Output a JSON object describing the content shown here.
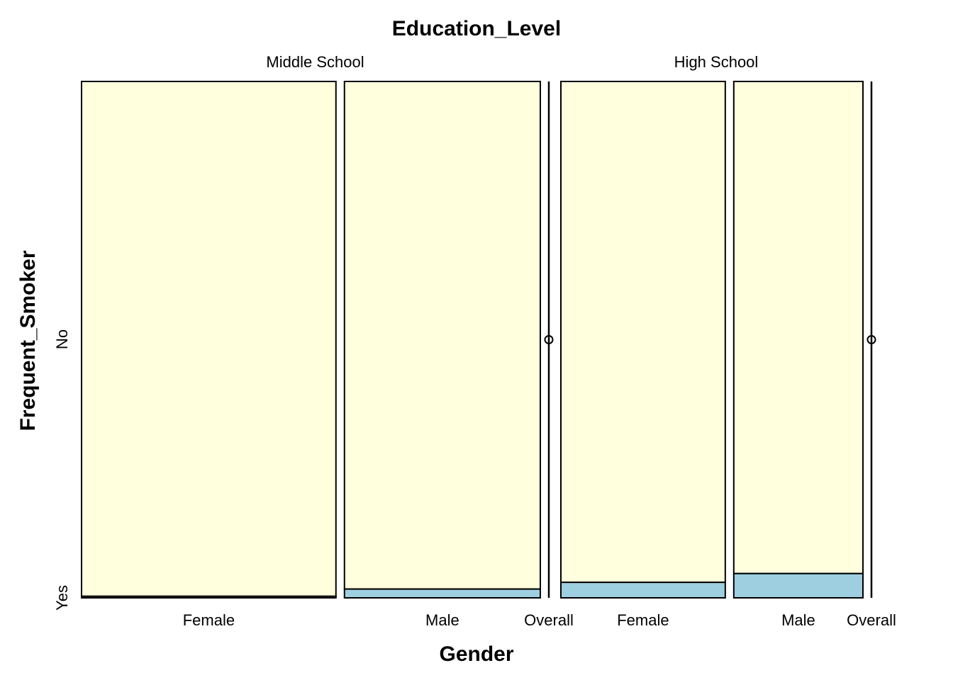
{
  "chart_data": {
    "type": "spineplot",
    "title": "Education_Level",
    "xlabel": "Gender",
    "ylabel": "Frequent_Smoker",
    "y_levels": [
      "No",
      "Yes"
    ],
    "y_ticks": [
      "Yes",
      "No"
    ],
    "colors": {
      "No": "#ffffdd",
      "Yes": "#9ecfe0"
    },
    "panels": [
      {
        "name": "Middle School",
        "overall_label": "Overall",
        "bars": [
          {
            "category": "Female",
            "width_share": 0.565,
            "yes_proportion": 0.003
          },
          {
            "category": "Male",
            "width_share": 0.435,
            "yes_proportion": 0.017
          }
        ]
      },
      {
        "name": "High School",
        "overall_label": "Overall",
        "bars": [
          {
            "category": "Female",
            "width_share": 0.56,
            "yes_proportion": 0.03
          },
          {
            "category": "Male",
            "width_share": 0.44,
            "yes_proportion": 0.047
          }
        ]
      }
    ]
  }
}
